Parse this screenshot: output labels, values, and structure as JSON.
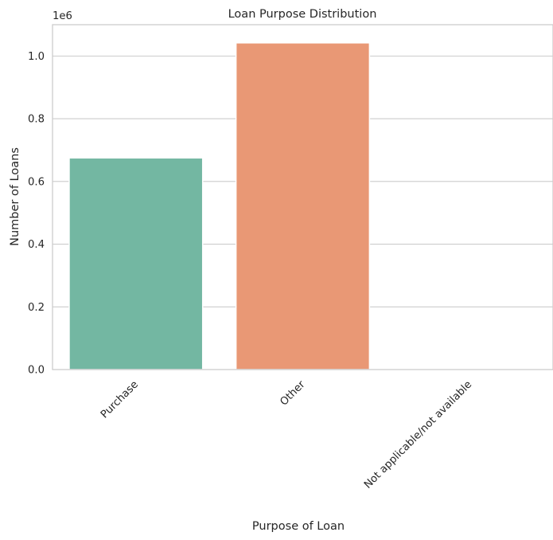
{
  "chart_data": {
    "type": "bar",
    "title": "Loan Purpose Distribution",
    "xlabel": "Purpose of Loan",
    "ylabel": "Number of Loans",
    "y_offset_label": "1e6",
    "categories": [
      "Purchase",
      "Other",
      "Not applicable/not available"
    ],
    "values": [
      675000,
      1042000,
      0
    ],
    "colors": [
      "#73b7a2",
      "#e99875",
      "#8da0cb"
    ],
    "ylim": [
      0,
      1100000
    ],
    "yticks": [
      0,
      200000,
      400000,
      600000,
      800000,
      1000000
    ],
    "ytick_labels": [
      "0.0",
      "0.2",
      "0.4",
      "0.6",
      "0.8",
      "1.0"
    ],
    "grid": true,
    "xtick_rotation": 45
  }
}
